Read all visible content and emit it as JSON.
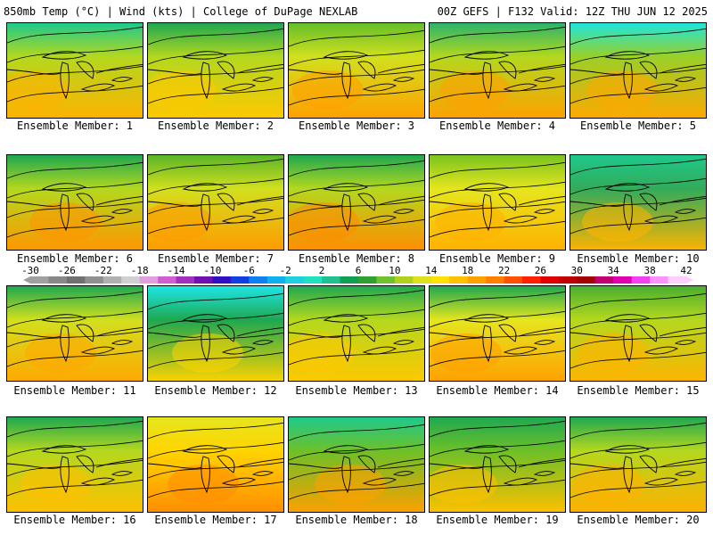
{
  "header": {
    "left_title": "850mb Temp (°C) | Wind (kts) | College of DuPage NEXLAB",
    "right_title": "00Z GEFS | F132 Valid: 12Z THU JUN 12 2025"
  },
  "colorbar": {
    "tick_labels": [
      "-30",
      "-26",
      "-22",
      "-18",
      "-14",
      "-10",
      "-6",
      "-2",
      "2",
      "6",
      "10",
      "14",
      "18",
      "22",
      "26",
      "30",
      "34",
      "38",
      "42"
    ],
    "colors": [
      "#a0a0a0",
      "#888888",
      "#707070",
      "#909090",
      "#b0b0b0",
      "#d0d0d0",
      "#e0a0e0",
      "#d060d0",
      "#a030c0",
      "#7010b0",
      "#3010c0",
      "#1040e0",
      "#1080f0",
      "#10b0f0",
      "#20d0e0",
      "#20e0c0",
      "#20c090",
      "#10a050",
      "#30a030",
      "#70c030",
      "#b0d020",
      "#e0e020",
      "#ffe000",
      "#ffc000",
      "#ffa000",
      "#ff8000",
      "#ff5000",
      "#ff2000",
      "#e00000",
      "#c00000",
      "#a00000",
      "#c00070",
      "#e000b0",
      "#f040f0",
      "#ff90ff",
      "#ffd0ff"
    ]
  },
  "panels": [
    {
      "label": "Ensemble Member: 1",
      "top": "#1ec98c",
      "mid": "#b4d81e",
      "low": "#ffb200"
    },
    {
      "label": "Ensemble Member: 2",
      "top": "#1ea850",
      "mid": "#b4d81e",
      "low": "#ffc800"
    },
    {
      "label": "Ensemble Member: 3",
      "top": "#64bf2a",
      "mid": "#d2e01e",
      "low": "#ffa000"
    },
    {
      "label": "Ensemble Member: 4",
      "top": "#2ab46a",
      "mid": "#b4d81e",
      "low": "#ffa000"
    },
    {
      "label": "Ensemble Member: 5",
      "top": "#1ee6dc",
      "mid": "#9ad028",
      "low": "#ffa800"
    },
    {
      "label": "Ensemble Member: 6",
      "top": "#1ea850",
      "mid": "#b4d81e",
      "low": "#ff9600"
    },
    {
      "label": "Ensemble Member: 7",
      "top": "#5ab428",
      "mid": "#d2e01e",
      "low": "#ff9a00"
    },
    {
      "label": "Ensemble Member: 8",
      "top": "#1ea850",
      "mid": "#b4d81e",
      "low": "#ff8c00"
    },
    {
      "label": "Ensemble Member: 9",
      "top": "#7ac41e",
      "mid": "#e6e61e",
      "low": "#ffb000"
    },
    {
      "label": "Ensemble Member: 10",
      "top": "#1ec98c",
      "mid": "#32ab5a",
      "low": "#ffb400"
    },
    {
      "label": "Ensemble Member: 11",
      "top": "#1ea850",
      "mid": "#d2e01e",
      "low": "#ffa800"
    },
    {
      "label": "Ensemble Member: 12",
      "top": "#1ee6e6",
      "mid": "#1ea850",
      "low": "#ffd400"
    },
    {
      "label": "Ensemble Member: 13",
      "top": "#1ea850",
      "mid": "#b4d81e",
      "low": "#ffc800"
    },
    {
      "label": "Ensemble Member: 14",
      "top": "#1ea850",
      "mid": "#e6e61e",
      "low": "#ffa000"
    },
    {
      "label": "Ensemble Member: 15",
      "top": "#4aaf30",
      "mid": "#b4d81e",
      "low": "#ffb400"
    },
    {
      "label": "Ensemble Member: 16",
      "top": "#1ea850",
      "mid": "#b4d81e",
      "low": "#ffc000"
    },
    {
      "label": "Ensemble Member: 17",
      "top": "#e6e61e",
      "mid": "#ffd400",
      "low": "#ff8c00"
    },
    {
      "label": "Ensemble Member: 18",
      "top": "#1ec98c",
      "mid": "#6ec028",
      "low": "#ffa000"
    },
    {
      "label": "Ensemble Member: 19",
      "top": "#1ea850",
      "mid": "#6ec028",
      "low": "#ffc000"
    },
    {
      "label": "Ensemble Member: 20",
      "top": "#1ea850",
      "mid": "#b4d81e",
      "low": "#ffb000"
    }
  ]
}
